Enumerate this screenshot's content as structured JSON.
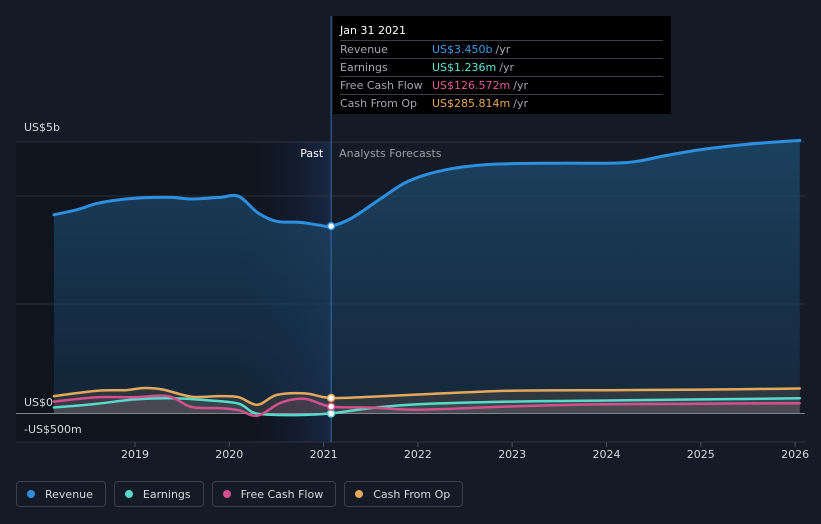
{
  "tooltip": {
    "date": "Jan 31 2021",
    "rows": [
      {
        "label": "Revenue",
        "value": "US$3.450b",
        "unit": "/yr",
        "color": "#3c9de8"
      },
      {
        "label": "Earnings",
        "value": "US$1.236m",
        "unit": "/yr",
        "color": "#5ee7d6"
      },
      {
        "label": "Free Cash Flow",
        "value": "US$126.572m",
        "unit": "/yr",
        "color": "#e05a96"
      },
      {
        "label": "Cash From Op",
        "value": "US$285.814m",
        "unit": "/yr",
        "color": "#eaaa5c"
      }
    ]
  },
  "legend": [
    {
      "label": "Revenue",
      "color": "#2e8fde"
    },
    {
      "label": "Earnings",
      "color": "#58d9c9"
    },
    {
      "label": "Free Cash Flow",
      "color": "#d4508c"
    },
    {
      "label": "Cash From Op",
      "color": "#e3a85b"
    }
  ],
  "chart_data": {
    "type": "area",
    "y_tick_labels": [
      "US$5b",
      "US$0",
      "-US$500m"
    ],
    "x_tick_labels": [
      "2019",
      "2020",
      "2021",
      "2022",
      "2023",
      "2024",
      "2025",
      "2026"
    ],
    "past_label": "Past",
    "forecast_label": "Analysts Forecasts",
    "divider_date": 2021.08,
    "ylim": [
      -500,
      5000
    ],
    "series": [
      {
        "name": "Revenue",
        "color": "#2e8fde",
        "x": [
          2018.14,
          2018.4,
          2018.6,
          2018.9,
          2019.2,
          2019.4,
          2019.6,
          2019.9,
          2020.1,
          2020.3,
          2020.5,
          2020.75,
          2020.95,
          2021.08,
          2021.3,
          2021.6,
          2021.9,
          2022.3,
          2022.8,
          2023.5,
          2024.2,
          2024.6,
          2025.0,
          2025.5,
          2026.05
        ],
        "y": [
          3660,
          3760,
          3870,
          3950,
          3980,
          3980,
          3950,
          3980,
          4000,
          3700,
          3540,
          3520,
          3470,
          3450,
          3600,
          3950,
          4280,
          4490,
          4590,
          4610,
          4620,
          4740,
          4860,
          4960,
          5030
        ]
      },
      {
        "name": "Earnings",
        "color": "#58d9c9",
        "x": [
          2018.14,
          2018.6,
          2019.0,
          2019.4,
          2019.8,
          2020.1,
          2020.25,
          2020.4,
          2020.7,
          2021.08,
          2021.5,
          2022.0,
          2023.0,
          2024.0,
          2025.0,
          2026.05
        ],
        "y": [
          110,
          180,
          260,
          280,
          240,
          180,
          20,
          -20,
          -30,
          1.24,
          100,
          170,
          220,
          240,
          260,
          280
        ]
      },
      {
        "name": "Free Cash Flow",
        "color": "#d4508c",
        "x": [
          2018.14,
          2018.6,
          2019.0,
          2019.35,
          2019.6,
          2019.9,
          2020.1,
          2020.3,
          2020.55,
          2020.8,
          2021.08,
          2021.5,
          2022.0,
          2023.0,
          2024.0,
          2025.0,
          2026.05
        ],
        "y": [
          220,
          300,
          300,
          320,
          120,
          100,
          60,
          -40,
          200,
          270,
          127,
          110,
          70,
          130,
          170,
          180,
          190
        ]
      },
      {
        "name": "Cash From Op",
        "color": "#e3a85b",
        "x": [
          2018.14,
          2018.6,
          2018.9,
          2019.1,
          2019.3,
          2019.6,
          2019.9,
          2020.1,
          2020.3,
          2020.5,
          2020.8,
          2021.08,
          2021.5,
          2022.0,
          2023.0,
          2024.0,
          2025.0,
          2026.05
        ],
        "y": [
          320,
          420,
          430,
          470,
          440,
          310,
          320,
          300,
          160,
          340,
          370,
          286,
          310,
          350,
          420,
          430,
          440,
          460
        ]
      }
    ]
  }
}
